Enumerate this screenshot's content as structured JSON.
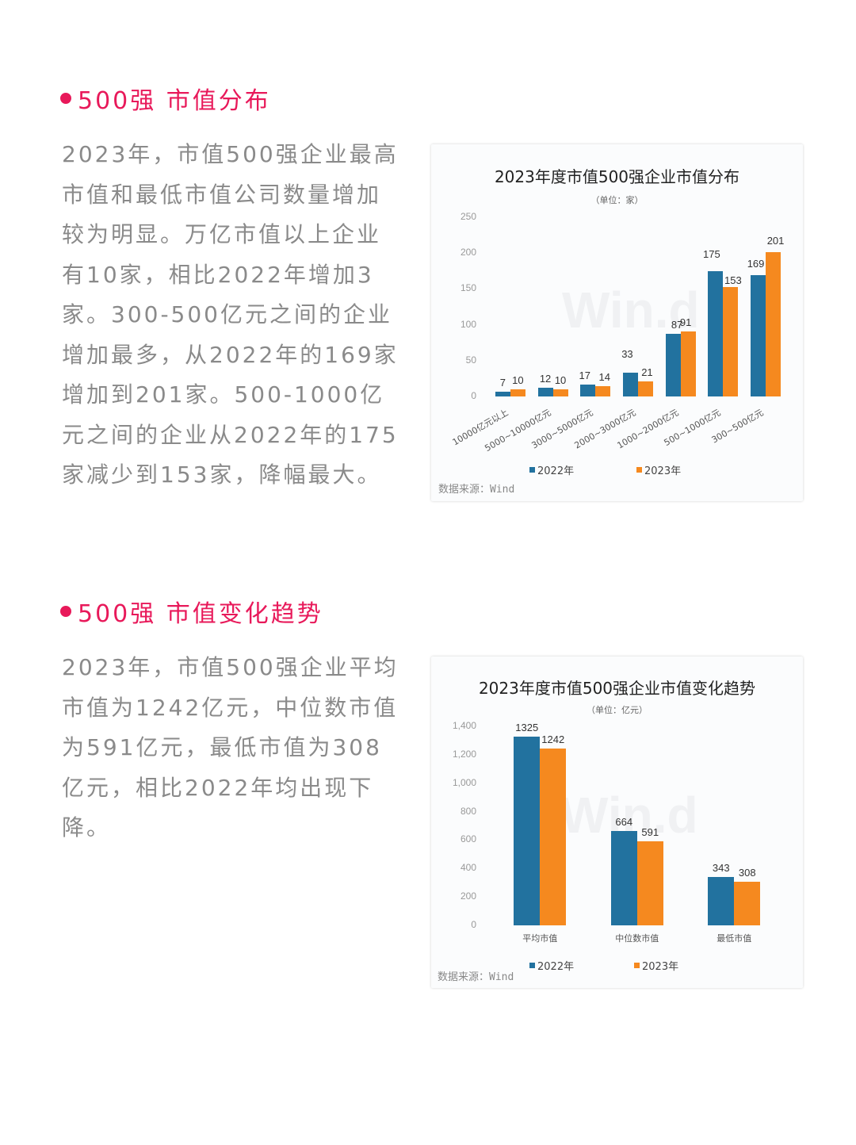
{
  "sections": [
    {
      "title": "500强 市值分布",
      "paragraph": "2023年，市值500强企业最高市值和最低市值公司数量增加较为明显。万亿市值以上企业有10家，相比2022年增加3家。300-500亿元之间的企业增加最多，从2022年的169家增加到201家。500-1000亿元之间的企业从2022年的175家减少到153家，降幅最大。"
    },
    {
      "title": "500强 市值变化趋势",
      "paragraph": "2023年，市值500强企业平均市值为1242亿元，中位数市值为591亿元，最低市值为308亿元，相比2022年均出现下降。"
    }
  ],
  "colors": {
    "accent": "#e8195a",
    "series_2022": "#22729f",
    "series_2023": "#f5891f",
    "body_text": "#8a8a8a"
  },
  "chart_data": [
    {
      "type": "bar",
      "title": "2023年度市值500强企业市值分布",
      "subtitle": "（单位：家）",
      "categories": [
        "10000亿元以上",
        "5000~10000亿元",
        "3000~5000亿元",
        "2000~3000亿元",
        "1000~2000亿元",
        "500~1000亿元",
        "300~500亿元"
      ],
      "series": [
        {
          "name": "2022年",
          "values": [
            7,
            12,
            17,
            33,
            87,
            175,
            169
          ]
        },
        {
          "name": "2023年",
          "values": [
            10,
            10,
            14,
            21,
            91,
            153,
            201
          ]
        }
      ],
      "yticks": [
        "250",
        "200",
        "150",
        "100",
        "50",
        "0"
      ],
      "ylim": [
        0,
        250
      ],
      "grid": false,
      "legend_position": "bottom",
      "source": "数据来源：Wind",
      "watermark": "Win.d"
    },
    {
      "type": "bar",
      "title": "2023年度市值500强企业市值变化趋势",
      "subtitle": "（单位：亿元）",
      "categories": [
        "平均市值",
        "中位数市值",
        "最低市值"
      ],
      "series": [
        {
          "name": "2022年",
          "values": [
            1325,
            664,
            343
          ]
        },
        {
          "name": "2023年",
          "values": [
            1242,
            591,
            308
          ]
        }
      ],
      "yticks": [
        "1,400",
        "1,200",
        "1,000",
        "800",
        "600",
        "400",
        "200",
        "0"
      ],
      "ylim": [
        0,
        1400
      ],
      "grid": false,
      "legend_position": "bottom",
      "source": "数据来源：Wind",
      "watermark": "Win.d"
    }
  ]
}
